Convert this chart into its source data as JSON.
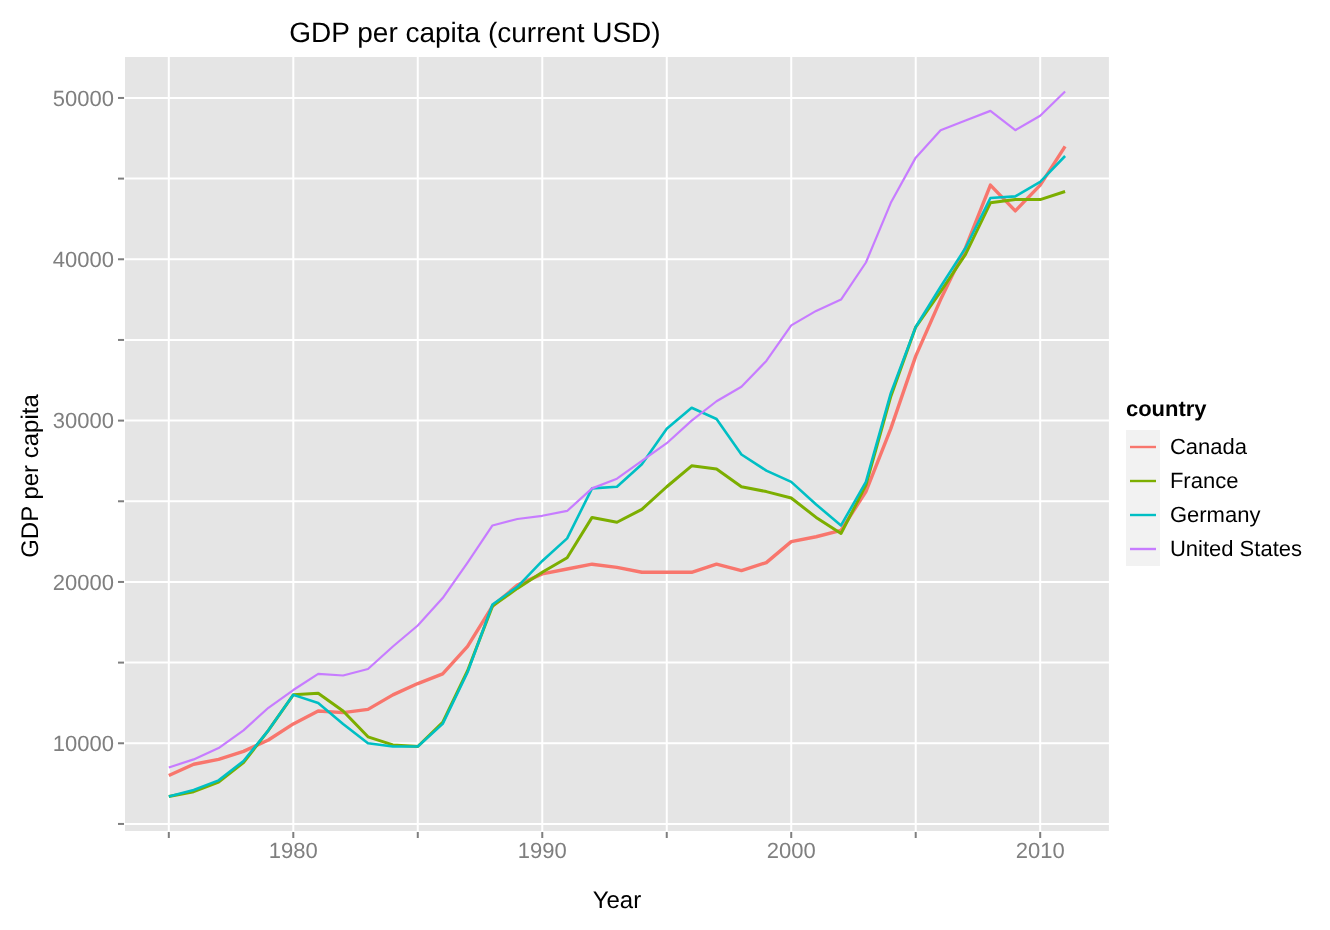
{
  "chart_data": {
    "type": "line",
    "title": "GDP per capita (current USD)",
    "xlabel": "Year",
    "ylabel": "GDP per capita",
    "legend_title": "country",
    "x": [
      1975,
      1976,
      1977,
      1978,
      1979,
      1980,
      1981,
      1982,
      1983,
      1984,
      1985,
      1986,
      1987,
      1988,
      1989,
      1990,
      1991,
      1992,
      1993,
      1994,
      1995,
      1996,
      1997,
      1998,
      1999,
      2000,
      2001,
      2002,
      2003,
      2004,
      2005,
      2006,
      2007,
      2008,
      2009,
      2010,
      2011
    ],
    "series": [
      {
        "name": "Canada",
        "color": "#f8766d",
        "values": [
          8000,
          8700,
          9000,
          9500,
          10200,
          11200,
          12000,
          11900,
          12100,
          13000,
          13700,
          14300,
          16000,
          18500,
          19800,
          20500,
          20800,
          21100,
          20900,
          20600,
          20600,
          20600,
          21100,
          20700,
          21200,
          22500,
          22800,
          23200,
          25600,
          29500,
          34000,
          37500,
          40700,
          44600,
          43000,
          44600,
          47000
        ]
      },
      {
        "name": "France",
        "color": "#7cae00",
        "values": [
          6700,
          7000,
          7600,
          8800,
          10800,
          13000,
          13100,
          12000,
          10400,
          9900,
          9800,
          11300,
          14500,
          18500,
          19600,
          20600,
          21500,
          24000,
          23700,
          24500,
          25900,
          27200,
          27000,
          25900,
          25600,
          25200,
          24000,
          23000,
          26000,
          31500,
          35800,
          38000,
          40300,
          43500,
          43700,
          43700,
          44200
        ]
      },
      {
        "name": "Germany",
        "color": "#00bfc4",
        "values": [
          6700,
          7100,
          7700,
          8900,
          10800,
          13000,
          12500,
          11200,
          10000,
          9800,
          9800,
          11200,
          14400,
          18600,
          19700,
          21300,
          22700,
          25800,
          25900,
          27300,
          29500,
          30800,
          30100,
          27900,
          26900,
          26200,
          24800,
          23500,
          26200,
          31700,
          35800,
          38300,
          40700,
          43800,
          43900,
          44800,
          46400
        ]
      },
      {
        "name": "United States",
        "color": "#c77cff",
        "values": [
          8500,
          9000,
          9700,
          10800,
          12200,
          13300,
          14300,
          14200,
          14600,
          16000,
          17300,
          19000,
          21200,
          23500,
          23900,
          24100,
          24400,
          25800,
          26400,
          27500,
          28600,
          30000,
          31200,
          32100,
          33700,
          35900,
          36800,
          37500,
          39800,
          43500,
          46300,
          48000,
          48600,
          49200,
          48000,
          48900,
          50400
        ]
      }
    ],
    "xlim": [
      1973.2,
      2012.8
    ],
    "xticks": [
      {
        "value": 1975,
        "label": null
      },
      1980,
      {
        "value": 1985,
        "label": null
      },
      1990,
      {
        "value": 1995,
        "label": null
      },
      2000,
      {
        "value": 2005,
        "label": null
      },
      2010
    ],
    "ylim": [
      4500,
      52600
    ],
    "yticks": [
      {
        "value": 5000,
        "label": null
      },
      10000,
      {
        "value": 15000,
        "label": null
      },
      20000,
      {
        "value": 25000,
        "label": null
      },
      30000,
      {
        "value": 35000,
        "label": null
      },
      40000,
      {
        "value": 45000,
        "label": null
      },
      50000
    ],
    "grid": true,
    "legend": "right",
    "marker": "none",
    "line_style": "solid"
  }
}
